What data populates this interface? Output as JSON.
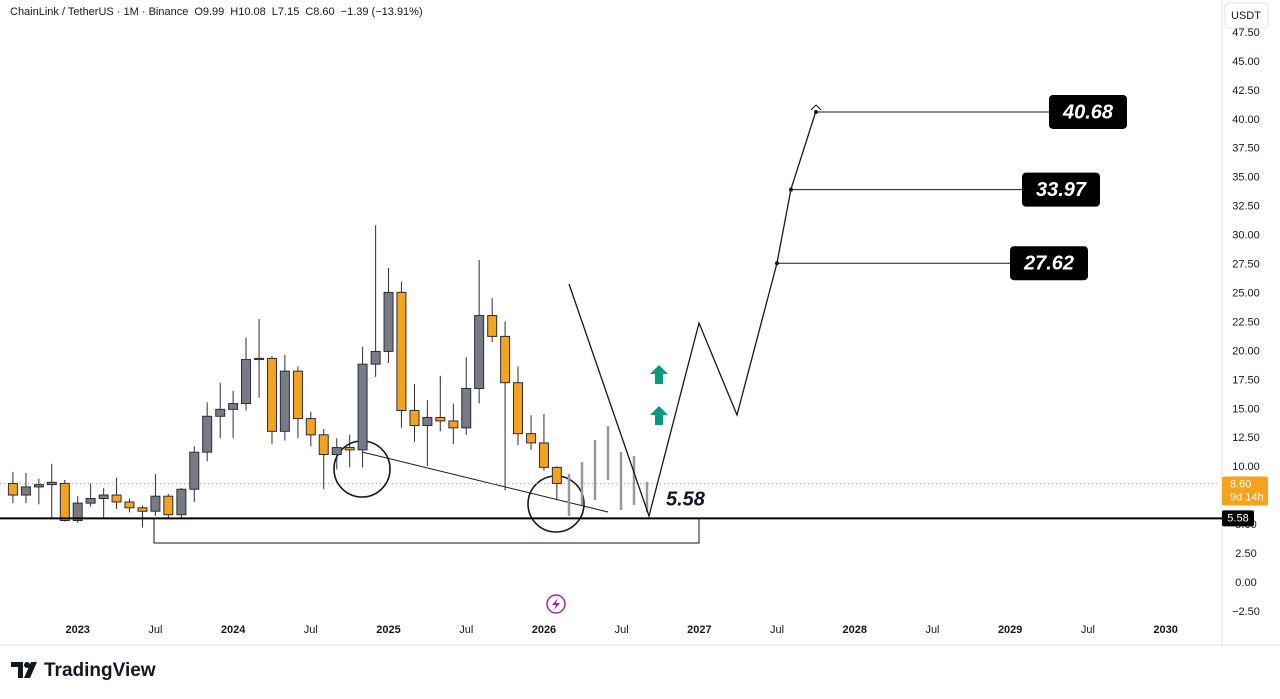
{
  "chart_data": {
    "type": "candlestick",
    "title": "ChainLink / TetherUS · 1M · Binance",
    "ohlc_legend": [
      "O9.99",
      "H10.08",
      "L7.15",
      "C8.60"
    ],
    "change": "−1.39 (−13.91%)",
    "currency": "USDT",
    "brand": "TradingView",
    "up_color": "#787b86",
    "down_color": "#f7a21b",
    "grid": false,
    "x": [
      2022.583,
      2022.667,
      2022.75,
      2022.833,
      2022.917,
      2023,
      2023.083,
      2023.167,
      2023.25,
      2023.333,
      2023.417,
      2023.5,
      2023.583,
      2023.667,
      2023.75,
      2023.833,
      2023.917,
      2024,
      2024.083,
      2024.167,
      2024.25,
      2024.333,
      2024.417,
      2024.5,
      2024.583,
      2024.667,
      2024.75,
      2024.833,
      2024.917,
      2025,
      2025.083,
      2025.167,
      2025.25,
      2025.333,
      2025.417,
      2025.5,
      2025.583,
      2025.667,
      2025.75,
      2025.833,
      2025.917,
      2026,
      2026.083
    ],
    "open": [
      8.6,
      7.6,
      8.3,
      8.5,
      8.6,
      5.4,
      6.9,
      7.3,
      7.6,
      7.0,
      6.5,
      6.2,
      7.5,
      5.9,
      8.1,
      11.3,
      14.4,
      15.0,
      15.5,
      19.3,
      19.4,
      13.1,
      18.3,
      14.2,
      12.8,
      11.1,
      11.7,
      11.5,
      18.9,
      20.0,
      25.1,
      14.9,
      13.6,
      14.3,
      14.0,
      13.4,
      16.8,
      23.1,
      21.3,
      17.3,
      12.9,
      12.1,
      9.99
    ],
    "high": [
      9.6,
      9.5,
      9.0,
      10.3,
      8.9,
      7.5,
      8.6,
      8.2,
      9.1,
      7.3,
      6.7,
      9.4,
      7.7,
      8.2,
      11.8,
      15.6,
      17.3,
      16.6,
      21.2,
      22.8,
      19.6,
      19.7,
      18.7,
      14.8,
      13.3,
      12.5,
      12.8,
      20.4,
      30.9,
      27.2,
      26.0,
      17.2,
      15.8,
      17.9,
      15.5,
      19.5,
      27.9,
      24.6,
      22.6,
      18.7,
      14.5,
      14.6,
      10.08
    ],
    "low": [
      6.9,
      6.9,
      6.8,
      5.5,
      5.3,
      5.2,
      6.6,
      5.6,
      6.4,
      6.1,
      4.8,
      5.8,
      5.6,
      5.6,
      7.0,
      10.5,
      12.5,
      12.5,
      14.9,
      16.0,
      12.0,
      12.3,
      12.5,
      11.8,
      8.1,
      9.8,
      10.0,
      10.0,
      17.8,
      19.0,
      13.4,
      12.2,
      10.1,
      13.1,
      12.0,
      12.8,
      15.5,
      20.8,
      8.0,
      11.9,
      11.5,
      9.7,
      7.15
    ],
    "close": [
      7.6,
      8.3,
      8.5,
      8.7,
      5.4,
      6.9,
      7.3,
      7.6,
      7.0,
      6.5,
      6.2,
      7.5,
      5.9,
      8.1,
      11.3,
      14.4,
      15.0,
      15.5,
      19.3,
      19.4,
      13.1,
      18.3,
      14.2,
      12.8,
      11.1,
      11.7,
      11.5,
      18.9,
      20.0,
      25.1,
      14.9,
      13.6,
      14.3,
      14.0,
      13.4,
      16.8,
      23.1,
      21.3,
      17.3,
      12.9,
      12.1,
      9.99,
      8.6
    ],
    "xlim": [
      2022.5,
      2030.35
    ],
    "xticks": [
      2023,
      {
        "value": 2023.5,
        "label": "Jul"
      },
      2024,
      {
        "value": 2024.5,
        "label": "Jul"
      },
      2025,
      {
        "value": 2025.5,
        "label": "Jul"
      },
      2026,
      {
        "value": 2026.5,
        "label": "Jul"
      },
      2027,
      {
        "value": 2027.5,
        "label": "Jul"
      },
      2028,
      {
        "value": 2028.5,
        "label": "Jul"
      },
      2029,
      {
        "value": 2029.5,
        "label": "Jul"
      },
      2030
    ],
    "ylim": [
      -2.76,
      50.35
    ],
    "yticks": [
      {
        "value": -2.5,
        "label": "−2.50"
      },
      {
        "value": 0,
        "label": "0.00"
      },
      {
        "value": 2.5,
        "label": "2.50"
      },
      {
        "value": 5,
        "label": "5.00"
      },
      {
        "value": 7.5,
        "label": "7.50"
      },
      {
        "value": 10,
        "label": "10.00"
      },
      {
        "value": 12.5,
        "label": "12.50"
      },
      {
        "value": 15,
        "label": "15.00"
      },
      {
        "value": 17.5,
        "label": "17.50"
      },
      {
        "value": 20,
        "label": "20.00"
      },
      {
        "value": 22.5,
        "label": "22.50"
      },
      {
        "value": 25,
        "label": "25.00"
      },
      {
        "value": 27.5,
        "label": "27.50"
      },
      {
        "value": 30,
        "label": "30.00"
      },
      {
        "value": 32.5,
        "label": "32.50"
      },
      {
        "value": 35,
        "label": "35.00"
      },
      {
        "value": 37.5,
        "label": "37.50"
      },
      {
        "value": 40,
        "label": "40.00"
      },
      {
        "value": 42.5,
        "label": "42.50"
      },
      {
        "value": 45,
        "label": "45.00"
      },
      {
        "value": 47.5,
        "label": "47.50"
      }
    ],
    "last_price": {
      "value": 8.6,
      "label": "8.60"
    },
    "countdown": "9d 14h",
    "support": 5.58,
    "targets": [
      27.62,
      33.97,
      40.68
    ]
  }
}
